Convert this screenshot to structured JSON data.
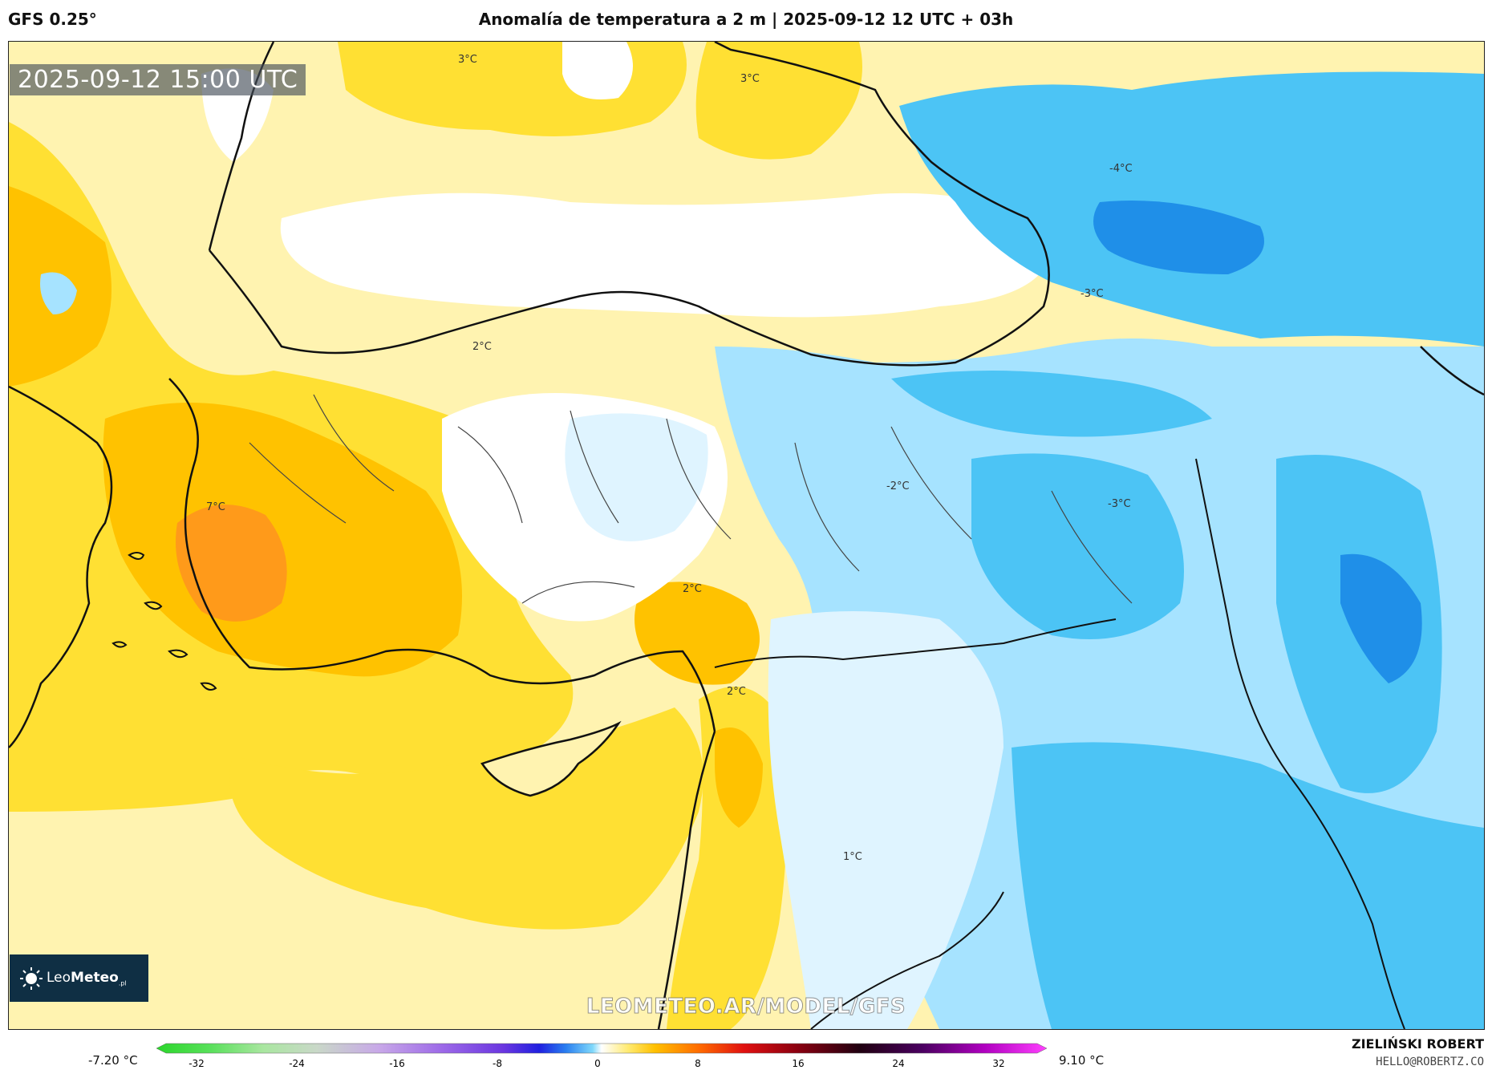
{
  "header": {
    "model": "GFS 0.25°",
    "title": "Anomalía de temperatura a 2 m | 2025-09-12 12 UTC + 03h"
  },
  "map": {
    "valid_time": "2025-09-12 15:00 UTC",
    "watermark": "LEOMETEO.AR/MODEL/GFS",
    "contour_labels": [
      "3°C",
      "3°C",
      "-4°C",
      "-3°C",
      "2°C",
      "7°C",
      "-2°C",
      "-3°C",
      "2°C",
      "2°C",
      "1°C"
    ]
  },
  "logo": {
    "name_light": "Leo",
    "name_bold": "Meteo",
    "suffix": ".pl"
  },
  "legend": {
    "min_label": "-7.20 °C",
    "max_label": "9.10 °C",
    "ticks": [
      "-32",
      "-24",
      "-16",
      "-8",
      "0",
      "8",
      "16",
      "24",
      "32"
    ]
  },
  "credit": {
    "name": "ZIELIŃSKI ROBERT",
    "email": "HELLO@ROBERTZ.CO"
  },
  "colors": {
    "warm_light": "#fff3b0",
    "warm_mid": "#ffe033",
    "warm_strong": "#ffc200",
    "warm_peak": "#ff9a1a",
    "neutral": "#ffffff",
    "cool_light": "#dff4ff",
    "cool_mid": "#a6e3ff",
    "cool_strong": "#4cc4f5",
    "cool_peak": "#1f8fe8"
  }
}
